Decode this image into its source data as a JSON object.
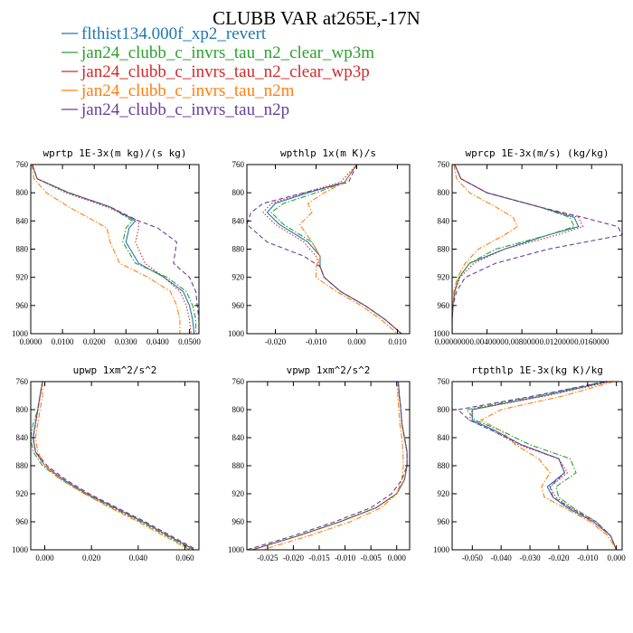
{
  "figure": {
    "title": "CLUBB VAR at265E,-17N"
  },
  "legend": [
    {
      "name": "flthist134.000f_xp2_revert",
      "color": "#1f77b4",
      "dash": "solid"
    },
    {
      "name": "jan24_clubb_c_invrs_tau_n2_clear_wp3m",
      "color": "#2ca02c",
      "dash": "dashdot"
    },
    {
      "name": "jan24_clubb_c_invrs_tau_n2_clear_wp3p",
      "color": "#d62728",
      "dash": "dot"
    },
    {
      "name": "jan24_clubb_c_invrs_tau_n2m",
      "color": "#ff7f0e",
      "dash": "dashdot"
    },
    {
      "name": "jan24_clubb_c_invrs_tau_n2p",
      "color": "#6a3d9a",
      "dash": "dash"
    }
  ],
  "chart_data": [
    {
      "type": "line",
      "title": "wprtp  1E-3x(m kg)/(s kg)",
      "xlim": [
        0.0,
        0.053
      ],
      "ylim": [
        760,
        1000
      ],
      "y_inverted": true,
      "xticks": [
        0.0,
        0.01,
        0.02,
        0.03,
        0.04,
        0.05
      ],
      "xtick_labels": [
        "0.0000",
        "0.0100",
        "0.0200",
        "0.0300",
        "0.0400",
        "0.0500"
      ],
      "yticks": [
        760,
        800,
        840,
        880,
        920,
        960,
        1000
      ],
      "y": [
        760,
        780,
        800,
        820,
        840,
        850,
        870,
        900,
        920,
        940,
        960,
        980,
        1000
      ],
      "series": [
        {
          "name": "flthist134.000f_xp2_revert",
          "values": [
            0.0005,
            0.002,
            0.012,
            0.025,
            0.033,
            0.031,
            0.03,
            0.034,
            0.042,
            0.048,
            0.05,
            0.051,
            0.0515
          ]
        },
        {
          "name": "jan24_clubb_c_invrs_tau_n2_clear_wp3m",
          "values": [
            0.0005,
            0.002,
            0.012,
            0.025,
            0.032,
            0.03,
            0.029,
            0.033,
            0.043,
            0.049,
            0.051,
            0.052,
            0.052
          ]
        },
        {
          "name": "jan24_clubb_c_invrs_tau_n2_clear_wp3p",
          "values": [
            0.0005,
            0.002,
            0.011,
            0.024,
            0.034,
            0.034,
            0.033,
            0.036,
            0.042,
            0.047,
            0.049,
            0.05,
            0.0505
          ]
        },
        {
          "name": "jan24_clubb_c_invrs_tau_n2m",
          "values": [
            0.0003,
            0.001,
            0.005,
            0.012,
            0.02,
            0.024,
            0.025,
            0.028,
            0.037,
            0.044,
            0.046,
            0.047,
            0.047
          ]
        },
        {
          "name": "jan24_clubb_c_invrs_tau_n2p",
          "values": [
            0.0005,
            0.002,
            0.012,
            0.025,
            0.034,
            0.04,
            0.046,
            0.045,
            0.05,
            0.052,
            0.0525,
            0.053,
            0.053
          ]
        }
      ]
    },
    {
      "type": "line",
      "title": "wpthlp  1x(m K)/s",
      "xlim": [
        -0.027,
        0.013
      ],
      "ylim": [
        760,
        1000
      ],
      "y_inverted": true,
      "xticks": [
        -0.02,
        -0.01,
        0.0,
        0.01
      ],
      "xtick_labels": [
        "-0.020",
        "-0.010",
        "0.000",
        "0.010"
      ],
      "yticks": [
        760,
        800,
        840,
        880,
        920,
        960,
        1000
      ],
      "y": [
        760,
        785,
        800,
        815,
        828,
        845,
        870,
        890,
        905,
        920,
        940,
        960,
        980,
        1000
      ],
      "series": [
        {
          "name": "flthist134.000f_xp2_revert",
          "values": [
            0.0,
            -0.003,
            -0.012,
            -0.02,
            -0.022,
            -0.019,
            -0.012,
            -0.009,
            -0.009,
            -0.008,
            -0.004,
            0.002,
            0.007,
            0.011
          ]
        },
        {
          "name": "jan24_clubb_c_invrs_tau_n2_clear_wp3m",
          "values": [
            0.0,
            -0.003,
            -0.01,
            -0.018,
            -0.021,
            -0.018,
            -0.011,
            -0.009,
            -0.009,
            -0.008,
            -0.004,
            0.002,
            0.007,
            0.011
          ]
        },
        {
          "name": "jan24_clubb_c_invrs_tau_n2_clear_wp3p",
          "values": [
            0.0,
            -0.004,
            -0.013,
            -0.021,
            -0.023,
            -0.02,
            -0.013,
            -0.01,
            -0.009,
            -0.008,
            -0.004,
            0.002,
            0.007,
            0.011
          ]
        },
        {
          "name": "jan24_clubb_c_invrs_tau_n2m",
          "values": [
            0.0,
            -0.003,
            -0.008,
            -0.012,
            -0.011,
            -0.014,
            -0.011,
            -0.009,
            -0.01,
            -0.01,
            -0.005,
            0.001,
            0.006,
            0.01
          ]
        },
        {
          "name": "jan24_clubb_c_invrs_tau_n2p",
          "values": [
            0.0,
            -0.002,
            -0.013,
            -0.023,
            -0.026,
            -0.027,
            -0.022,
            -0.013,
            -0.009,
            -0.008,
            -0.004,
            0.002,
            0.007,
            0.011
          ]
        }
      ]
    },
    {
      "type": "line",
      "title": "wprcp  1E-3x(m/s) (kg/kg)",
      "xlim": [
        0.0,
        0.0195
      ],
      "ylim": [
        760,
        1000
      ],
      "y_inverted": true,
      "xticks": [
        0.0,
        0.004,
        0.008,
        0.012,
        0.016
      ],
      "xtick_labels": [
        "0.0000000",
        "0.0040000",
        "0.0080000",
        "0.0120000",
        "0.0160000"
      ],
      "yticks": [
        760,
        800,
        840,
        880,
        920,
        960,
        1000
      ],
      "y": [
        760,
        780,
        800,
        820,
        835,
        848,
        860,
        880,
        900,
        920,
        940,
        960,
        980,
        1000
      ],
      "series": [
        {
          "name": "flthist134.000f_xp2_revert",
          "values": [
            0.0003,
            0.001,
            0.004,
            0.01,
            0.014,
            0.0145,
            0.011,
            0.006,
            0.002,
            0.0008,
            0.0003,
            0.0001,
            0.0,
            0.0
          ]
        },
        {
          "name": "jan24_clubb_c_invrs_tau_n2_clear_wp3m",
          "values": [
            0.0003,
            0.001,
            0.004,
            0.01,
            0.0135,
            0.014,
            0.011,
            0.005,
            0.002,
            0.0008,
            0.0003,
            0.0001,
            0.0,
            0.0
          ]
        },
        {
          "name": "jan24_clubb_c_invrs_tau_n2_clear_wp3p",
          "values": [
            0.0003,
            0.001,
            0.004,
            0.01,
            0.0145,
            0.015,
            0.012,
            0.006,
            0.0025,
            0.0009,
            0.0003,
            0.0001,
            0.0,
            0.0
          ]
        },
        {
          "name": "jan24_clubb_c_invrs_tau_n2m",
          "values": [
            0.0002,
            0.0005,
            0.002,
            0.005,
            0.007,
            0.0075,
            0.006,
            0.003,
            0.0015,
            0.0006,
            0.0002,
            0.0001,
            0.0,
            0.0
          ]
        },
        {
          "name": "jan24_clubb_c_invrs_tau_n2p",
          "values": [
            0.0003,
            0.001,
            0.004,
            0.01,
            0.015,
            0.019,
            0.0195,
            0.011,
            0.005,
            0.0015,
            0.0005,
            0.0001,
            0.0,
            0.0
          ]
        }
      ]
    },
    {
      "type": "line",
      "title": "upwp  1xm^2/s^2",
      "xlim": [
        -0.006,
        0.066
      ],
      "ylim": [
        760,
        1000
      ],
      "y_inverted": true,
      "xticks": [
        0.0,
        0.02,
        0.04,
        0.06
      ],
      "xtick_labels": [
        "0.000",
        "0.020",
        "0.040",
        "0.060"
      ],
      "yticks": [
        760,
        800,
        840,
        880,
        920,
        960,
        1000
      ],
      "y": [
        760,
        780,
        800,
        820,
        840,
        860,
        880,
        900,
        920,
        940,
        960,
        980,
        1000
      ],
      "series": [
        {
          "name": "flthist134.000f_xp2_revert",
          "values": [
            -0.001,
            -0.002,
            -0.003,
            -0.004,
            -0.005,
            -0.004,
            0.0,
            0.008,
            0.018,
            0.03,
            0.042,
            0.053,
            0.064
          ]
        },
        {
          "name": "jan24_clubb_c_invrs_tau_n2_clear_wp3m",
          "values": [
            -0.001,
            -0.002,
            -0.003,
            -0.005,
            -0.006,
            -0.005,
            -0.001,
            0.007,
            0.017,
            0.029,
            0.041,
            0.052,
            0.063
          ]
        },
        {
          "name": "jan24_clubb_c_invrs_tau_n2_clear_wp3p",
          "values": [
            -0.001,
            -0.002,
            -0.003,
            -0.004,
            -0.005,
            -0.004,
            0.0,
            0.008,
            0.018,
            0.03,
            0.042,
            0.053,
            0.064
          ]
        },
        {
          "name": "jan24_clubb_c_invrs_tau_n2m",
          "values": [
            -0.001,
            -0.001,
            -0.002,
            -0.003,
            -0.004,
            -0.003,
            0.0,
            0.007,
            0.017,
            0.028,
            0.04,
            0.051,
            0.062
          ]
        },
        {
          "name": "jan24_clubb_c_invrs_tau_n2p",
          "values": [
            -0.001,
            -0.002,
            -0.003,
            -0.004,
            -0.005,
            -0.004,
            0.001,
            0.009,
            0.019,
            0.031,
            0.043,
            0.054,
            0.065
          ]
        }
      ]
    },
    {
      "type": "line",
      "title": "vpwp  1xm^2/s^2",
      "xlim": [
        -0.029,
        0.0025
      ],
      "ylim": [
        760,
        1000
      ],
      "y_inverted": true,
      "xticks": [
        -0.025,
        -0.02,
        -0.015,
        -0.01,
        -0.005,
        0.0
      ],
      "xtick_labels": [
        "-0.025",
        "-0.020",
        "-0.015",
        "-0.010",
        "-0.005",
        "0.000"
      ],
      "yticks": [
        760,
        800,
        840,
        880,
        920,
        960,
        1000
      ],
      "y": [
        760,
        780,
        800,
        820,
        840,
        860,
        880,
        900,
        920,
        940,
        960,
        980,
        1000
      ],
      "series": [
        {
          "name": "flthist134.000f_xp2_revert",
          "values": [
            0.0003,
            0.0005,
            0.0008,
            0.001,
            0.0015,
            0.002,
            0.002,
            0.0015,
            0.0,
            -0.004,
            -0.011,
            -0.019,
            -0.028
          ]
        },
        {
          "name": "jan24_clubb_c_invrs_tau_n2_clear_wp3m",
          "values": [
            0.0003,
            0.0005,
            0.0008,
            0.001,
            0.0015,
            0.002,
            0.002,
            0.0015,
            0.0,
            -0.004,
            -0.011,
            -0.019,
            -0.028
          ]
        },
        {
          "name": "jan24_clubb_c_invrs_tau_n2_clear_wp3p",
          "values": [
            0.0003,
            0.0005,
            0.0008,
            0.001,
            0.0015,
            0.002,
            0.002,
            0.0015,
            0.0,
            -0.004,
            -0.011,
            -0.019,
            -0.028
          ]
        },
        {
          "name": "jan24_clubb_c_invrs_tau_n2m",
          "values": [
            0.0,
            0.0002,
            0.0004,
            0.0006,
            0.001,
            0.0012,
            0.0013,
            0.001,
            0.0,
            -0.003,
            -0.009,
            -0.017,
            -0.026
          ]
        },
        {
          "name": "jan24_clubb_c_invrs_tau_n2p",
          "values": [
            0.0003,
            0.0005,
            0.0008,
            0.001,
            0.0015,
            0.002,
            0.002,
            0.001,
            -0.001,
            -0.005,
            -0.012,
            -0.02,
            -0.029
          ]
        }
      ]
    },
    {
      "type": "line",
      "title": "rtpthlp  1E-3x(kg K)/kg",
      "xlim": [
        -0.057,
        0.002
      ],
      "ylim": [
        760,
        1000
      ],
      "y_inverted": true,
      "xticks": [
        -0.05,
        -0.04,
        -0.03,
        -0.02,
        -0.01,
        0.0
      ],
      "xtick_labels": [
        "-0.050",
        "-0.040",
        "-0.030",
        "-0.020",
        "-0.010",
        "0.000"
      ],
      "yticks": [
        760,
        800,
        840,
        880,
        920,
        960,
        1000
      ],
      "y": [
        760,
        780,
        800,
        815,
        830,
        850,
        870,
        890,
        910,
        925,
        940,
        960,
        980,
        1000
      ],
      "series": [
        {
          "name": "flthist134.000f_xp2_revert",
          "values": [
            -0.003,
            -0.025,
            -0.05,
            -0.05,
            -0.042,
            -0.033,
            -0.02,
            -0.018,
            -0.024,
            -0.022,
            -0.017,
            -0.008,
            -0.002,
            0.0
          ]
        },
        {
          "name": "jan24_clubb_c_invrs_tau_n2_clear_wp3m",
          "values": [
            -0.004,
            -0.027,
            -0.052,
            -0.049,
            -0.04,
            -0.03,
            -0.016,
            -0.014,
            -0.021,
            -0.02,
            -0.015,
            -0.007,
            -0.002,
            0.0
          ]
        },
        {
          "name": "jan24_clubb_c_invrs_tau_n2_clear_wp3p",
          "values": [
            -0.002,
            -0.024,
            -0.05,
            -0.051,
            -0.043,
            -0.034,
            -0.02,
            -0.017,
            -0.023,
            -0.021,
            -0.016,
            -0.008,
            -0.002,
            0.0
          ]
        },
        {
          "name": "jan24_clubb_c_invrs_tau_n2m",
          "values": [
            -0.001,
            -0.018,
            -0.04,
            -0.047,
            -0.04,
            -0.035,
            -0.027,
            -0.023,
            -0.026,
            -0.025,
            -0.018,
            -0.009,
            -0.003,
            0.0
          ]
        },
        {
          "name": "jan24_clubb_c_invrs_tau_n2p",
          "values": [
            -0.004,
            -0.028,
            -0.055,
            -0.051,
            -0.043,
            -0.033,
            -0.02,
            -0.018,
            -0.023,
            -0.022,
            -0.016,
            -0.007,
            -0.002,
            0.0
          ]
        }
      ]
    }
  ]
}
